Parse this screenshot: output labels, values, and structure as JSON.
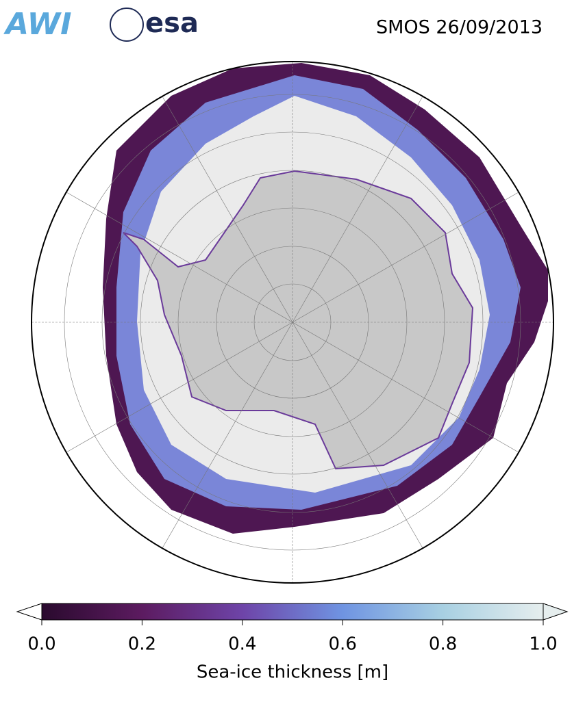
{
  "logos": [
    "AWI",
    "esa"
  ],
  "title": "SMOS 26/09/2013",
  "colorbar": {
    "label": "Sea-ice thickness [m]",
    "lim": [
      0,
      1
    ],
    "ticks": [
      {
        "value": 0,
        "label": "0.0"
      },
      {
        "value": 0.2,
        "label": "0.2"
      },
      {
        "value": 0.4,
        "label": "0.4"
      },
      {
        "value": 0.6,
        "label": "0.6"
      },
      {
        "value": 0.8,
        "label": "0.8"
      },
      {
        "value": 1,
        "label": "1.0"
      }
    ],
    "colors": [
      "#2a0a2e",
      "#5c1b60",
      "#6e44a8",
      "#6f94e2",
      "#a8d0e2",
      "#e6eeee"
    ]
  }
}
